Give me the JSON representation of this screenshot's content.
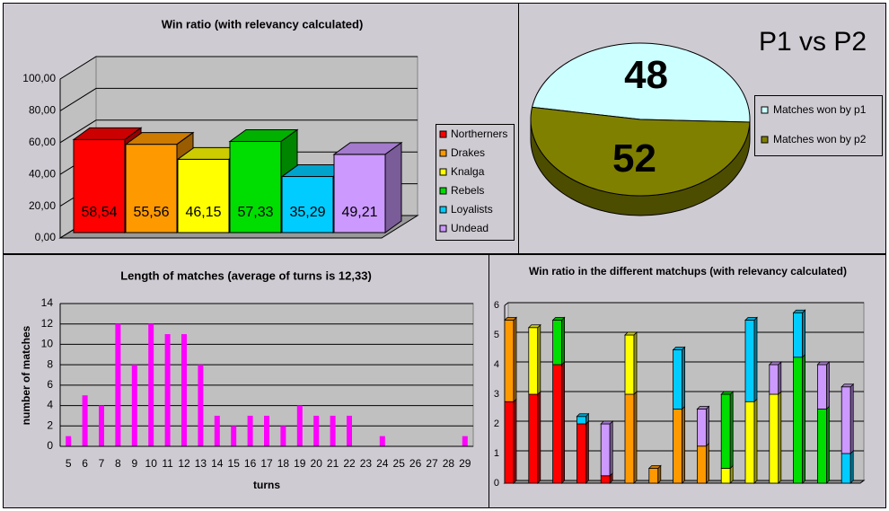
{
  "chart_data": [
    {
      "type": "bar3d",
      "title": "Win ratio (with relevancy calculated)",
      "categories": [
        "Northerners",
        "Drakes",
        "Knalga",
        "Rebels",
        "Loyalists",
        "Undead"
      ],
      "values": [
        58.54,
        55.56,
        46.15,
        57.33,
        35.29,
        49.21
      ],
      "value_labels": [
        "58,54",
        "55,56",
        "46,15",
        "57,33",
        "35,29",
        "49,21"
      ],
      "colors": [
        "#ff0000",
        "#ff9900",
        "#ffff00",
        "#00dd00",
        "#00ccff",
        "#cc99ff"
      ],
      "ylim": [
        0,
        100
      ],
      "yticks": [
        {
          "value": 0,
          "label": "0,00"
        },
        {
          "value": 20,
          "label": "20,00"
        },
        {
          "value": 40,
          "label": "40,00"
        },
        {
          "value": 60,
          "label": "60,00"
        },
        {
          "value": 80,
          "label": "80,00"
        },
        {
          "value": 100,
          "label": "100,00"
        }
      ],
      "grid": true,
      "legend": "right"
    },
    {
      "type": "pie",
      "title": "P1 vs P2",
      "labels": [
        "Matches won by p1",
        "Matches won by p2"
      ],
      "values": [
        48,
        52
      ],
      "colors": [
        "#ccffff",
        "#808000"
      ],
      "legend": "right"
    },
    {
      "type": "bar",
      "title": "Length of matches (average of turns is 12,33)",
      "xlabel": "turns",
      "ylabel": "number of matches",
      "categories": [
        5,
        6,
        7,
        8,
        9,
        10,
        11,
        12,
        13,
        14,
        15,
        16,
        17,
        18,
        19,
        20,
        21,
        22,
        23,
        24,
        25,
        26,
        27,
        28,
        29
      ],
      "values": [
        1,
        5,
        4,
        12,
        8,
        12,
        11,
        11,
        8,
        3,
        2,
        3,
        3,
        2,
        4,
        3,
        3,
        3,
        0,
        1,
        0,
        0,
        0,
        0,
        1
      ],
      "color": "#ff00ff",
      "ylim": [
        0,
        14
      ],
      "yticks": [
        0,
        2,
        4,
        6,
        8,
        10,
        12,
        14
      ],
      "grid": true
    },
    {
      "type": "stacked_bar3d",
      "title": "Win ratio in the different matchups (with relevancy calculated)",
      "ylim": [
        0,
        6
      ],
      "yticks": [
        0,
        1,
        2,
        3,
        4,
        5,
        6
      ],
      "grid": true,
      "series": [
        {
          "color": "#ff0000",
          "values": [
            2.75,
            3,
            4,
            2,
            0.25,
            null,
            null,
            null,
            null,
            null,
            null,
            null,
            null,
            null,
            null
          ]
        },
        {
          "color": "#ff9900",
          "values": [
            2.75,
            null,
            null,
            null,
            null,
            3,
            0.5,
            2.5,
            1.25,
            null,
            null,
            null,
            null,
            null,
            null
          ]
        },
        {
          "color": "#ffff00",
          "values": [
            null,
            2.25,
            null,
            null,
            null,
            2,
            null,
            null,
            null,
            0.5,
            2.75,
            3,
            null,
            null,
            null
          ]
        },
        {
          "color": "#00dd00",
          "values": [
            null,
            null,
            1.5,
            null,
            null,
            null,
            null,
            null,
            null,
            2.5,
            null,
            null,
            4.25,
            2.5,
            null
          ]
        },
        {
          "color": "#00ccff",
          "values": [
            null,
            null,
            null,
            0.25,
            null,
            null,
            null,
            2,
            null,
            null,
            2.75,
            null,
            1.5,
            null,
            1
          ]
        },
        {
          "color": "#cc99ff",
          "values": [
            null,
            null,
            null,
            null,
            1.75,
            null,
            null,
            null,
            1.25,
            null,
            null,
            1,
            null,
            1.5,
            2.25
          ]
        }
      ]
    }
  ]
}
